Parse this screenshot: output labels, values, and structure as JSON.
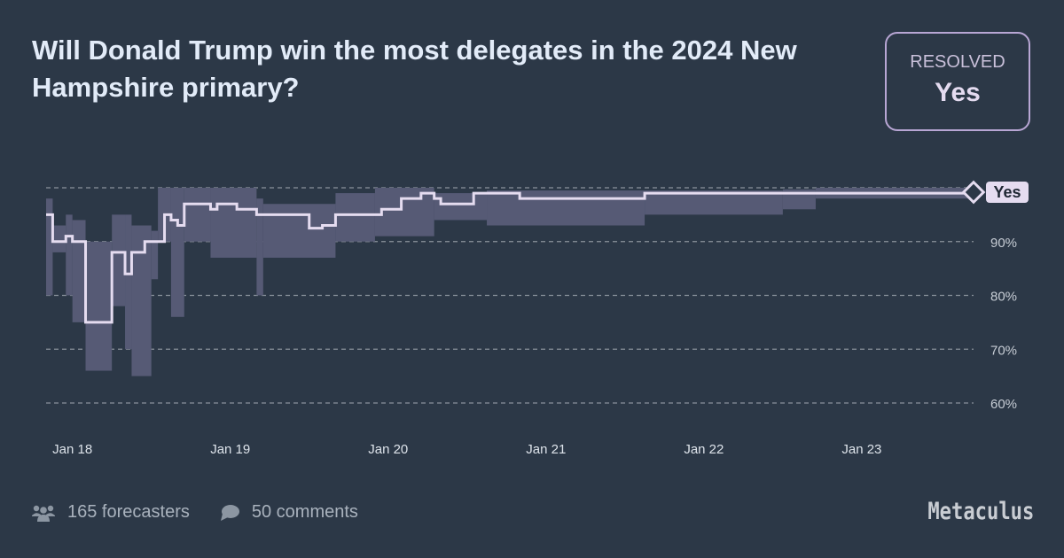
{
  "question": {
    "title": "Will Donald Trump win the most delegates in the 2024 New Hampshire primary?"
  },
  "resolution": {
    "label": "RESOLVED",
    "value": "Yes"
  },
  "footer": {
    "forecasters": "165 forecasters",
    "comments": "50 comments",
    "logo": "Metaculus"
  },
  "colors": {
    "background": "#2c3847",
    "band": "#565a75",
    "line": "#e5dcf0",
    "resolved_border": "#b8a6d4"
  },
  "chart_data": {
    "type": "line",
    "title": "",
    "xlabel": "",
    "ylabel": "",
    "xlim": [
      "2024-01-17T20:00",
      "2024-01-23T17:00"
    ],
    "ylim": [
      60,
      100
    ],
    "grid": true,
    "x_ticks": [
      {
        "date": "2024-01-18T00:00",
        "label": "Jan 18"
      },
      {
        "date": "2024-01-19T00:00",
        "label": "Jan 19"
      },
      {
        "date": "2024-01-20T00:00",
        "label": "Jan 20"
      },
      {
        "date": "2024-01-21T00:00",
        "label": "Jan 21"
      },
      {
        "date": "2024-01-22T00:00",
        "label": "Jan 22"
      },
      {
        "date": "2024-01-23T00:00",
        "label": "Jan 23"
      }
    ],
    "y_ticks": [
      {
        "value": 90,
        "label": "90%"
      },
      {
        "value": 80,
        "label": "80%"
      },
      {
        "value": 70,
        "label": "70%"
      },
      {
        "value": 60,
        "label": "60%"
      }
    ],
    "resolution_marker": {
      "label": "Yes",
      "value": 100
    },
    "median": [
      [
        "2024-01-17T20:00",
        95
      ],
      [
        "2024-01-17T21:00",
        90
      ],
      [
        "2024-01-17T23:00",
        91
      ],
      [
        "2024-01-18T00:00",
        90
      ],
      [
        "2024-01-18T02:00",
        75
      ],
      [
        "2024-01-18T06:00",
        88
      ],
      [
        "2024-01-18T08:00",
        84
      ],
      [
        "2024-01-18T09:00",
        88
      ],
      [
        "2024-01-18T11:00",
        90
      ],
      [
        "2024-01-18T14:00",
        95
      ],
      [
        "2024-01-18T15:00",
        94
      ],
      [
        "2024-01-18T16:00",
        93
      ],
      [
        "2024-01-18T17:00",
        97
      ],
      [
        "2024-01-18T21:00",
        96
      ],
      [
        "2024-01-18T22:00",
        97
      ],
      [
        "2024-01-19T01:00",
        96
      ],
      [
        "2024-01-19T04:00",
        95
      ],
      [
        "2024-01-19T12:00",
        92.5
      ],
      [
        "2024-01-19T14:00",
        93
      ],
      [
        "2024-01-19T16:00",
        95
      ],
      [
        "2024-01-19T23:00",
        96
      ],
      [
        "2024-01-20T02:00",
        98
      ],
      [
        "2024-01-20T05:00",
        99
      ],
      [
        "2024-01-20T07:00",
        98
      ],
      [
        "2024-01-20T08:00",
        97
      ],
      [
        "2024-01-20T13:00",
        99
      ],
      [
        "2024-01-20T20:00",
        98
      ],
      [
        "2024-01-21T15:00",
        99
      ],
      [
        "2024-01-23T17:00",
        99
      ]
    ],
    "interval": [
      [
        "2024-01-17T20:00",
        80,
        98
      ],
      [
        "2024-01-17T21:00",
        88,
        93
      ],
      [
        "2024-01-17T23:00",
        80,
        95
      ],
      [
        "2024-01-18T00:00",
        75,
        94
      ],
      [
        "2024-01-18T02:00",
        66,
        90
      ],
      [
        "2024-01-18T06:00",
        78,
        95
      ],
      [
        "2024-01-18T08:00",
        70,
        95
      ],
      [
        "2024-01-18T09:00",
        65,
        93
      ],
      [
        "2024-01-18T12:00",
        83,
        92
      ],
      [
        "2024-01-18T13:00",
        90,
        100
      ],
      [
        "2024-01-18T15:00",
        76,
        100
      ],
      [
        "2024-01-18T17:00",
        90,
        100
      ],
      [
        "2024-01-18T21:00",
        87,
        100
      ],
      [
        "2024-01-19T04:00",
        80,
        98
      ],
      [
        "2024-01-19T05:00",
        87,
        97
      ],
      [
        "2024-01-19T16:00",
        90,
        99
      ],
      [
        "2024-01-19T22:00",
        91,
        100
      ],
      [
        "2024-01-20T07:00",
        94,
        99
      ],
      [
        "2024-01-20T15:00",
        93,
        99.5
      ],
      [
        "2024-01-21T15:00",
        95,
        99.5
      ],
      [
        "2024-01-22T12:00",
        96,
        99.7
      ],
      [
        "2024-01-22T17:00",
        98,
        100
      ],
      [
        "2024-01-23T17:00",
        98,
        100
      ]
    ]
  }
}
